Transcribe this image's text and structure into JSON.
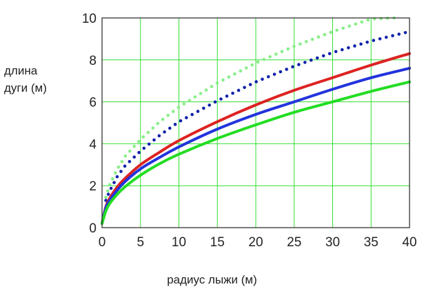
{
  "chart_data": {
    "type": "line",
    "ylabel_lines": [
      "длина",
      "дуги (м)"
    ],
    "xlabel": "радиус лыжи (м)",
    "xlim": [
      0,
      40
    ],
    "ylim": [
      0,
      10
    ],
    "x_ticks": [
      0,
      5,
      10,
      15,
      20,
      25,
      30,
      35,
      40
    ],
    "y_ticks": [
      0,
      2,
      4,
      6,
      8,
      10
    ],
    "grid": true,
    "grid_color": "#33dd33",
    "series": [
      {
        "color": "#88ee88",
        "style": "dotted",
        "x": [
          0.5,
          1,
          2,
          3,
          5,
          7.5,
          10,
          15,
          20,
          25,
          30,
          35,
          38
        ],
        "y": [
          1.45,
          2.05,
          2.8,
          3.4,
          4.2,
          5.05,
          5.75,
          6.9,
          7.85,
          8.65,
          9.35,
          9.95,
          10.0
        ]
      },
      {
        "color": "#1122aa",
        "style": "dotted",
        "x": [
          0.5,
          1,
          2,
          3,
          5,
          7.5,
          10,
          15,
          20,
          25,
          30,
          35,
          40
        ],
        "y": [
          1.3,
          1.75,
          2.45,
          2.95,
          3.65,
          4.4,
          5.05,
          6.05,
          6.95,
          7.7,
          8.35,
          8.9,
          9.35
        ]
      },
      {
        "color": "#dd2222",
        "style": "solid",
        "x": [
          0,
          0.5,
          1,
          2,
          3,
          5,
          7.5,
          10,
          15,
          20,
          25,
          30,
          35,
          40
        ],
        "y": [
          0.2,
          1.0,
          1.4,
          1.95,
          2.35,
          3.0,
          3.6,
          4.15,
          5.05,
          5.85,
          6.55,
          7.15,
          7.75,
          8.3
        ]
      },
      {
        "color": "#2233dd",
        "style": "solid",
        "x": [
          0,
          0.5,
          1,
          2,
          3,
          5,
          7.5,
          10,
          15,
          20,
          25,
          30,
          35,
          40
        ],
        "y": [
          0.2,
          0.95,
          1.3,
          1.8,
          2.2,
          2.8,
          3.35,
          3.85,
          4.7,
          5.4,
          6.0,
          6.6,
          7.15,
          7.6
        ]
      },
      {
        "color": "#22dd22",
        "style": "solid",
        "x": [
          0,
          0.5,
          1,
          2,
          3,
          5,
          7.5,
          10,
          15,
          20,
          25,
          30,
          35,
          40
        ],
        "y": [
          0.2,
          0.8,
          1.15,
          1.6,
          1.95,
          2.5,
          3.05,
          3.5,
          4.25,
          4.9,
          5.5,
          6.0,
          6.5,
          6.95
        ]
      }
    ]
  }
}
